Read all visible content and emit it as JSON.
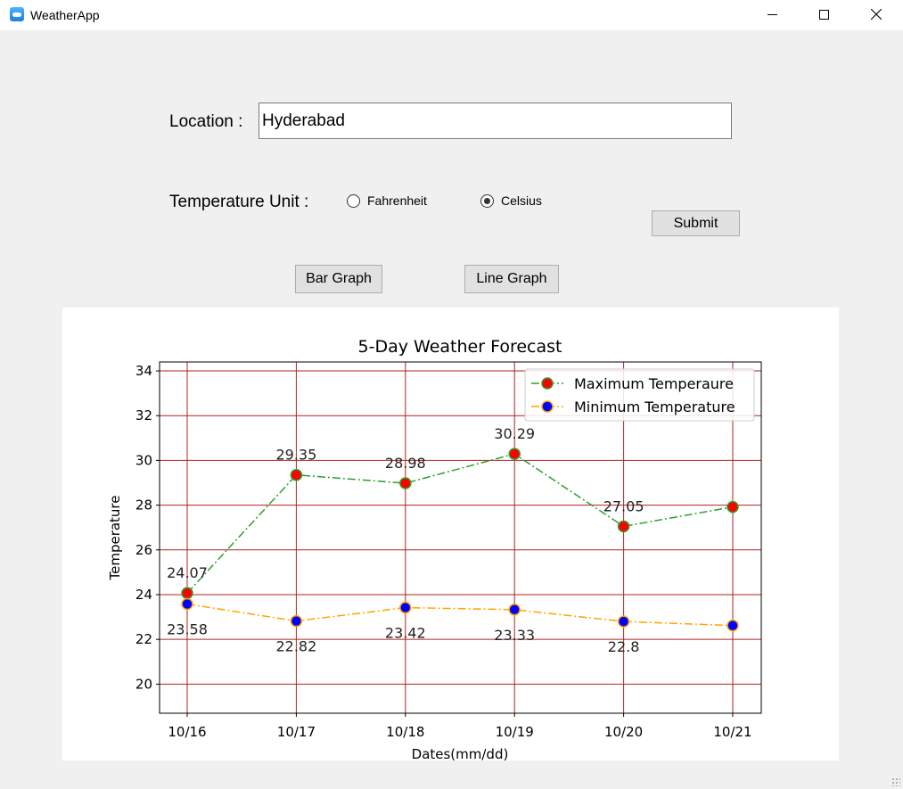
{
  "window": {
    "title": "WeatherApp"
  },
  "form": {
    "location_label": "Location :",
    "location_value": "Hyderabad",
    "unit_label": "Temperature Unit :",
    "unit_options": [
      "Fahrenheit",
      "Celsius"
    ],
    "unit_selected": "Celsius",
    "submit_label": "Submit"
  },
  "graph_buttons": {
    "bar_label": "Bar Graph",
    "line_label": "Line Graph"
  },
  "chart_data": {
    "type": "line",
    "title": "5-Day Weather Forecast",
    "xlabel": "Dates(mm/dd)",
    "ylabel": "Temperature",
    "categories": [
      "10/16",
      "10/17",
      "10/18",
      "10/19",
      "10/20",
      "10/21"
    ],
    "ylim": [
      18.7,
      34.4
    ],
    "yticks": [
      20,
      22,
      24,
      26,
      28,
      30,
      32,
      34
    ],
    "grid": true,
    "legend_position": "top-right",
    "series": [
      {
        "name": "Maximum Temperaure",
        "values": [
          24.07,
          29.35,
          28.98,
          30.29,
          27.05,
          27.92
        ],
        "data_labels": [
          "24.07",
          "29.35",
          "28.98",
          "30.29",
          "27.05",
          ""
        ],
        "line_color": "#2ca02c",
        "marker_color": "#ff0000",
        "marker_edge": "#2ca02c",
        "line_style": "dashdot"
      },
      {
        "name": "Minimum Temperature",
        "values": [
          23.58,
          22.82,
          23.42,
          23.33,
          22.8,
          22.62
        ],
        "data_labels": [
          "23.58",
          "22.82",
          "23.42",
          "23.33",
          "22.8",
          ""
        ],
        "line_color": "#ffa500",
        "marker_color": "#0000ff",
        "marker_edge": "#ffa500",
        "line_style": "dashdot"
      }
    ],
    "grid_color": "#b22222"
  }
}
